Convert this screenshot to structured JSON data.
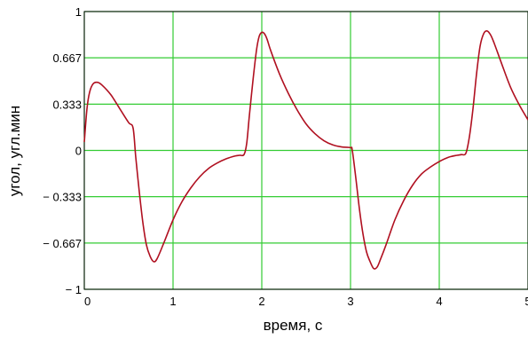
{
  "chart_data": {
    "type": "line",
    "title": "",
    "xlabel": "время, с",
    "ylabel": "угол,  угл.мин",
    "xlim": [
      0,
      5
    ],
    "ylim": [
      -1,
      1
    ],
    "x_ticks": [
      0,
      1,
      2,
      3,
      4,
      5
    ],
    "x_tick_labels": [
      "0",
      "1",
      "2",
      "3",
      "4",
      "5"
    ],
    "y_ticks": [
      1,
      0.667,
      0.333,
      0,
      -0.333,
      -0.667,
      -1
    ],
    "y_tick_labels": [
      "1",
      "0.667",
      "0.333",
      "0",
      "− 0.333",
      "− 0.667",
      "− 1"
    ],
    "grid": true,
    "grid_color": "#33cc33",
    "series": [
      {
        "color": "#b01020",
        "x": [
          0,
          0.03,
          0.06,
          0.1,
          0.15,
          0.2,
          0.3,
          0.4,
          0.5,
          0.55,
          0.58,
          0.62,
          0.66,
          0.7,
          0.74,
          0.78,
          0.82,
          0.9,
          1.0,
          1.1,
          1.2,
          1.3,
          1.4,
          1.5,
          1.6,
          1.7,
          1.75,
          1.8,
          1.83,
          1.86,
          1.9,
          1.94,
          1.97,
          2.0,
          2.03,
          2.06,
          2.1,
          2.2,
          2.3,
          2.4,
          2.5,
          2.6,
          2.7,
          2.8,
          2.9,
          3.0,
          3.02,
          3.06,
          3.1,
          3.14,
          3.18,
          3.22,
          3.26,
          3.3,
          3.34,
          3.4,
          3.5,
          3.6,
          3.7,
          3.8,
          3.9,
          4.0,
          4.1,
          4.2,
          4.25,
          4.3,
          4.34,
          4.38,
          4.42,
          4.46,
          4.5,
          4.54,
          4.58,
          4.62,
          4.7,
          4.8,
          4.9,
          5.0
        ],
        "y": [
          0.06,
          0.3,
          0.42,
          0.48,
          0.49,
          0.47,
          0.4,
          0.3,
          0.2,
          0.16,
          -0.05,
          -0.3,
          -0.52,
          -0.68,
          -0.76,
          -0.8,
          -0.78,
          -0.66,
          -0.5,
          -0.37,
          -0.27,
          -0.19,
          -0.13,
          -0.09,
          -0.06,
          -0.04,
          -0.035,
          -0.03,
          0.05,
          0.25,
          0.5,
          0.72,
          0.82,
          0.85,
          0.84,
          0.8,
          0.72,
          0.55,
          0.41,
          0.29,
          0.19,
          0.12,
          0.07,
          0.04,
          0.025,
          0.02,
          0.0,
          -0.2,
          -0.42,
          -0.6,
          -0.73,
          -0.8,
          -0.85,
          -0.84,
          -0.78,
          -0.68,
          -0.5,
          -0.36,
          -0.25,
          -0.17,
          -0.12,
          -0.08,
          -0.05,
          -0.035,
          -0.03,
          -0.02,
          0.1,
          0.3,
          0.55,
          0.75,
          0.84,
          0.86,
          0.83,
          0.77,
          0.63,
          0.46,
          0.33,
          0.22
        ]
      }
    ]
  }
}
